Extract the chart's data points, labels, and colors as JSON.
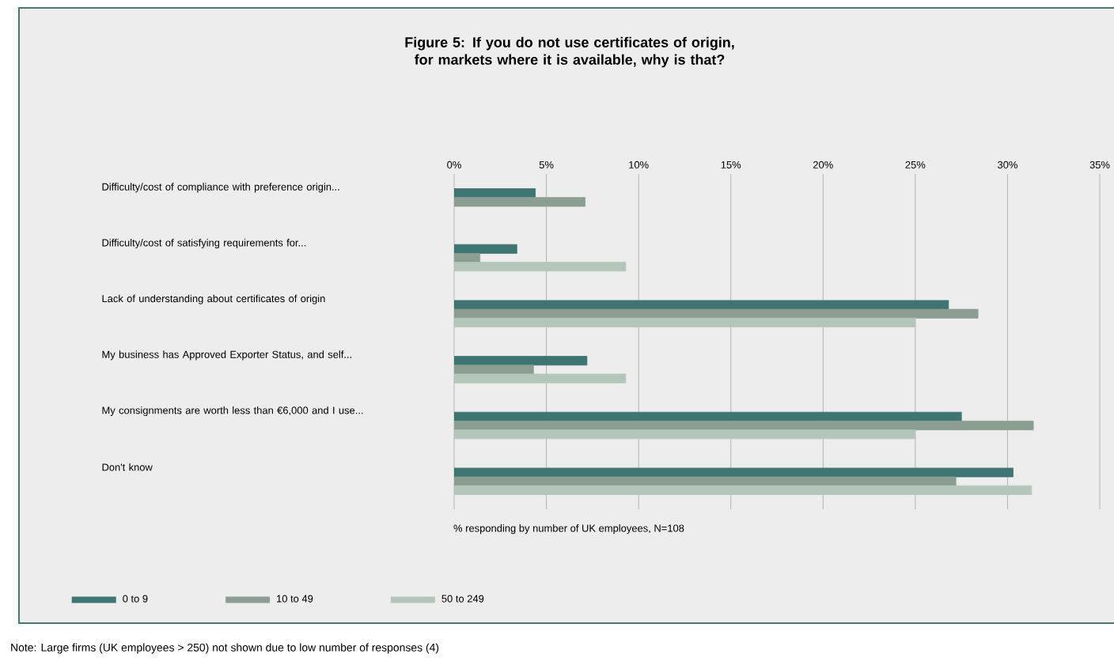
{
  "chart_data": {
    "type": "bar",
    "orientation": "horizontal",
    "title": "Figure 5: If you do not use certificates of origin, for markets where it is available, why is that?",
    "xlabel": "% responding by number of UK employees, N=108",
    "categories": [
      "Difficulty/cost of compliance with preference origin...",
      "Difficulty/cost of satisfying requirements for...",
      "Lack of understanding about certificates of origin",
      "My business has Approved Exporter Status, and self...",
      "My consignments are worth less than €6,000 and I use...",
      "Don't know"
    ],
    "series": [
      {
        "name": "0 to 9",
        "color": "#3e7472",
        "values": [
          4.4,
          3.4,
          26.8,
          7.2,
          27.5,
          30.3
        ]
      },
      {
        "name": "10 to 49",
        "color": "#8c9e91",
        "values": [
          7.1,
          1.4,
          28.4,
          4.3,
          31.4,
          27.2
        ]
      },
      {
        "name": "50 to 249",
        "color": "#b4c6ba",
        "values": [
          null,
          9.3,
          25.0,
          9.3,
          25.0,
          31.3
        ]
      }
    ],
    "xlim": [
      0,
      35
    ],
    "xticks": [
      {
        "value": 0,
        "label": "0%"
      },
      {
        "value": 5,
        "label": "5%"
      },
      {
        "value": 10,
        "label": "10%"
      },
      {
        "value": 15,
        "label": "15%"
      },
      {
        "value": 20,
        "label": "20%"
      },
      {
        "value": 25,
        "label": "25%"
      },
      {
        "value": 30,
        "label": "30%"
      },
      {
        "value": 35,
        "label": "35%"
      }
    ],
    "grid": "x",
    "legend": "bottom",
    "annotations": [
      "Note: Large firms (UK employees > 250) not shown due to low number of responses (4)"
    ]
  }
}
